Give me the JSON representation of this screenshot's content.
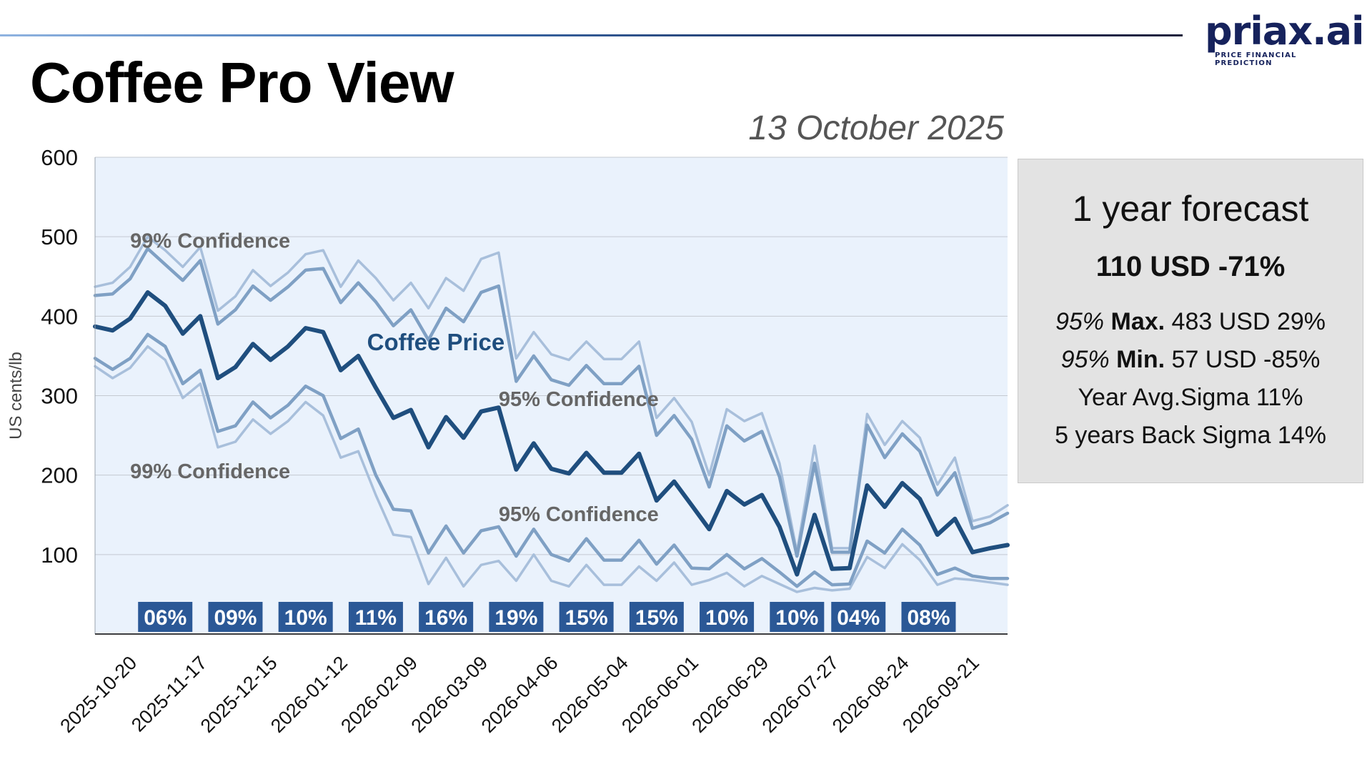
{
  "brand": {
    "name": "priax.ai",
    "tagline": "PRICE FINANCIAL PREDICTION"
  },
  "page": {
    "title": "Coffee Pro View",
    "date": "13 October 2025"
  },
  "forecast": {
    "title": "1 year forecast",
    "headline": "110 USD -71%",
    "max": {
      "prefix": "95%",
      "label": "Max.",
      "value": "483 USD 29%"
    },
    "min": {
      "prefix": "95%",
      "label": "Min.",
      "value": "57 USD -85%"
    },
    "avg_sigma": "Year Avg.Sigma 11%",
    "back_sigma": "5 years Back Sigma 14%"
  },
  "colors": {
    "plot_bg": "#eaf2fc",
    "price": "#1f4e7e",
    "band95": "#7fa0c4",
    "band99": "#a8bfdb",
    "annotation": "#666666",
    "badge_bg": "#2b5896",
    "badge_text": "#ffffff"
  },
  "chart_data": {
    "type": "line",
    "ylabel": "US cents/lb",
    "ylim": [
      0,
      600
    ],
    "yticks": [
      100,
      200,
      300,
      400,
      500,
      600
    ],
    "grid": true,
    "x_tick_labels": [
      "2025-10-20",
      "2025-11-17",
      "2025-12-15",
      "2026-01-12",
      "2026-02-09",
      "2026-03-09",
      "2026-04-06",
      "2026-05-04",
      "2026-06-01",
      "2026-06-29",
      "2026-07-27",
      "2026-08-24",
      "2026-09-21"
    ],
    "x_tick_positions": [
      0,
      4,
      8,
      12,
      16,
      20,
      24,
      28,
      32,
      36,
      40,
      44,
      48
    ],
    "series": [
      {
        "name": "Coffee Price",
        "role": "price",
        "values": [
          387,
          382,
          397,
          430,
          413,
          378,
          400,
          322,
          336,
          365,
          345,
          362,
          385,
          380,
          332,
          350,
          310,
          272,
          282,
          235,
          273,
          247,
          280,
          285,
          207,
          240,
          208,
          202,
          228,
          203,
          203,
          227,
          168,
          192,
          162,
          132,
          180,
          163,
          175,
          135,
          75,
          150,
          82,
          83,
          187,
          160,
          190,
          170,
          125,
          145,
          103,
          108,
          112
        ]
      },
      {
        "role": "upper95",
        "values": [
          426,
          428,
          447,
          485,
          465,
          445,
          470,
          390,
          408,
          438,
          420,
          437,
          458,
          460,
          417,
          442,
          418,
          388,
          408,
          370,
          410,
          393,
          430,
          438,
          318,
          350,
          320,
          313,
          338,
          315,
          315,
          337,
          250,
          275,
          245,
          185,
          262,
          243,
          255,
          198,
          98,
          215,
          103,
          103,
          263,
          222,
          252,
          230,
          175,
          203,
          133,
          140,
          152
        ]
      },
      {
        "role": "upper99",
        "values": [
          437,
          442,
          462,
          500,
          483,
          462,
          487,
          407,
          425,
          458,
          438,
          455,
          478,
          483,
          437,
          470,
          448,
          420,
          442,
          410,
          448,
          432,
          472,
          480,
          347,
          380,
          352,
          345,
          368,
          346,
          346,
          368,
          272,
          297,
          267,
          200,
          283,
          268,
          278,
          215,
          103,
          237,
          108,
          108,
          277,
          238,
          268,
          247,
          188,
          222,
          142,
          148,
          162
        ]
      },
      {
        "role": "lower95",
        "values": [
          347,
          333,
          347,
          377,
          362,
          315,
          332,
          255,
          262,
          292,
          272,
          288,
          312,
          300,
          246,
          258,
          200,
          157,
          155,
          102,
          136,
          102,
          130,
          135,
          98,
          132,
          100,
          92,
          120,
          93,
          93,
          118,
          88,
          112,
          83,
          82,
          100,
          82,
          95,
          78,
          60,
          78,
          62,
          63,
          117,
          102,
          132,
          112,
          75,
          83,
          73,
          70,
          70
        ]
      },
      {
        "role": "lower99",
        "values": [
          337,
          322,
          335,
          362,
          345,
          297,
          315,
          235,
          242,
          270,
          252,
          268,
          292,
          275,
          222,
          230,
          175,
          125,
          122,
          63,
          96,
          60,
          87,
          92,
          67,
          100,
          67,
          60,
          87,
          62,
          62,
          85,
          67,
          90,
          62,
          68,
          77,
          60,
          73,
          63,
          53,
          58,
          55,
          57,
          97,
          83,
          113,
          93,
          62,
          70,
          68,
          65,
          62
        ]
      }
    ],
    "annotations": [
      {
        "text": "99% Confidence",
        "x": 2,
        "y": 495
      },
      {
        "text": "99% Confidence",
        "x": 2,
        "y": 205
      },
      {
        "text": "95% Confidence",
        "x": 23,
        "y": 296
      },
      {
        "text": "95% Confidence",
        "x": 23,
        "y": 151
      },
      {
        "text": "Coffee Price",
        "x": 15.5,
        "y": 366
      }
    ],
    "sigma_badges": [
      {
        "label": "06%",
        "x": 4
      },
      {
        "label": "09%",
        "x": 8
      },
      {
        "label": "10%",
        "x": 12
      },
      {
        "label": "11%",
        "x": 16
      },
      {
        "label": "16%",
        "x": 20
      },
      {
        "label": "19%",
        "x": 24
      },
      {
        "label": "15%",
        "x": 28
      },
      {
        "label": "15%",
        "x": 32
      },
      {
        "label": "10%",
        "x": 36
      },
      {
        "label": "10%",
        "x": 40
      },
      {
        "label": "04%",
        "x": 43.5
      },
      {
        "label": "08%",
        "x": 47.5
      }
    ]
  }
}
